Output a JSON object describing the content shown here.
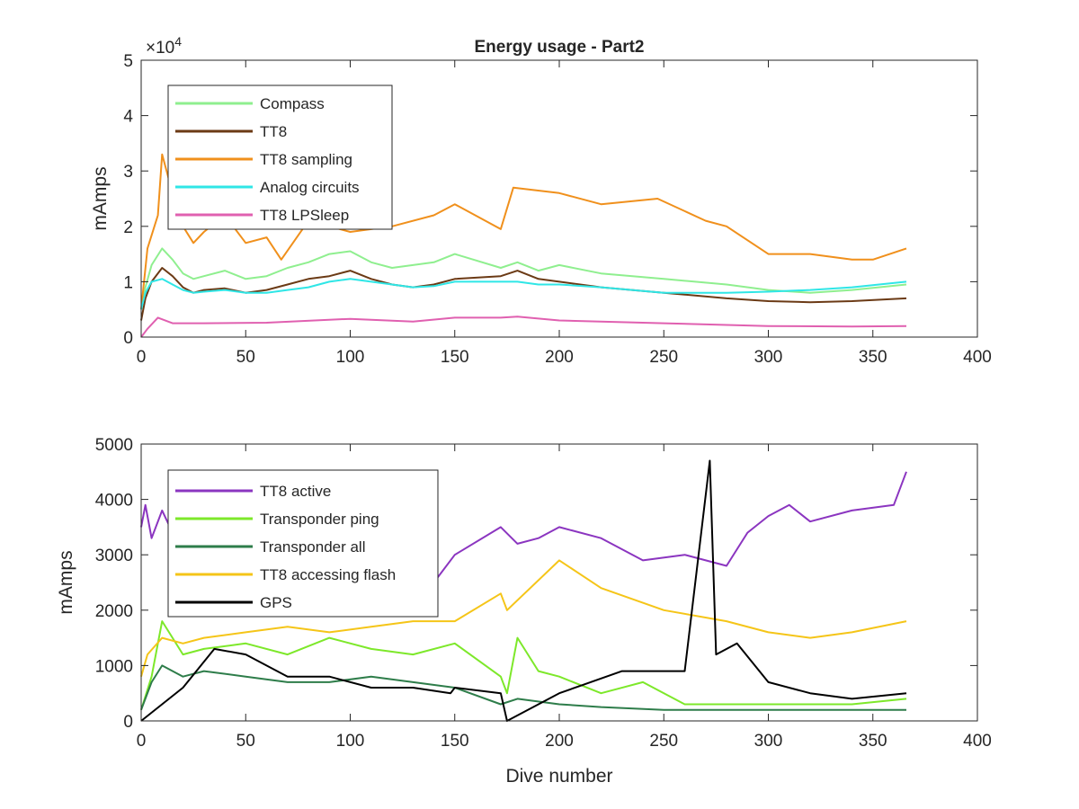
{
  "chart_data": [
    {
      "type": "line",
      "title": "Energy usage - Part2",
      "xlabel": "",
      "ylabel": "mAmps",
      "xlim": [
        0,
        400
      ],
      "ylim": [
        0,
        50000
      ],
      "exponent_label": "×10^4",
      "exponent_base": "×10",
      "exponent_power": "4",
      "xticks": [
        "0",
        "50",
        "100",
        "150",
        "200",
        "250",
        "300",
        "350",
        "400"
      ],
      "yticks": [
        "0",
        "1",
        "2",
        "3",
        "4",
        "5"
      ],
      "legend_position": "top-left",
      "grid": false,
      "series": [
        {
          "name": "Compass",
          "color": "#8fef8f",
          "x": [
            0,
            2,
            5,
            10,
            15,
            20,
            25,
            30,
            40,
            50,
            60,
            70,
            80,
            90,
            100,
            110,
            120,
            130,
            140,
            150,
            172,
            180,
            190,
            200,
            220,
            250,
            280,
            300,
            320,
            340,
            366
          ],
          "y": [
            5000,
            9000,
            13000,
            16000,
            14000,
            11500,
            10500,
            11000,
            12000,
            10500,
            11000,
            12500,
            13500,
            15000,
            15500,
            13500,
            12500,
            13000,
            13500,
            15000,
            12500,
            13500,
            12000,
            13000,
            11500,
            10500,
            9500,
            8500,
            8000,
            8500,
            9500
          ]
        },
        {
          "name": "TT8",
          "color": "#6b3a15",
          "x": [
            0,
            2,
            5,
            10,
            15,
            20,
            25,
            30,
            40,
            50,
            60,
            70,
            80,
            90,
            100,
            110,
            120,
            130,
            140,
            150,
            172,
            180,
            190,
            200,
            220,
            250,
            280,
            300,
            320,
            340,
            366
          ],
          "y": [
            3000,
            7000,
            10000,
            12500,
            11000,
            9000,
            8000,
            8500,
            8800,
            8000,
            8500,
            9500,
            10500,
            11000,
            12000,
            10500,
            9500,
            9000,
            9500,
            10500,
            11000,
            12000,
            10500,
            10000,
            9000,
            8000,
            7000,
            6500,
            6300,
            6500,
            7000
          ]
        },
        {
          "name": "TT8 sampling",
          "color": "#f0901c",
          "x": [
            0,
            3,
            8,
            10,
            15,
            20,
            25,
            30,
            40,
            50,
            60,
            67,
            80,
            100,
            120,
            140,
            150,
            172,
            178,
            200,
            220,
            247,
            270,
            280,
            300,
            320,
            340,
            350,
            366
          ],
          "y": [
            5000,
            16000,
            22000,
            33000,
            26000,
            20000,
            17000,
            19000,
            22000,
            17000,
            18000,
            14000,
            21000,
            19000,
            20000,
            22000,
            24000,
            19500,
            27000,
            26000,
            24000,
            25000,
            21000,
            20000,
            15000,
            15000,
            14000,
            14000,
            16000
          ]
        },
        {
          "name": "Analog circuits",
          "color": "#2fe6e6",
          "x": [
            0,
            2,
            5,
            10,
            15,
            20,
            25,
            30,
            40,
            50,
            60,
            70,
            80,
            90,
            100,
            110,
            120,
            130,
            140,
            150,
            172,
            180,
            190,
            200,
            220,
            250,
            280,
            300,
            320,
            340,
            366
          ],
          "y": [
            5000,
            8000,
            10000,
            10500,
            9500,
            8500,
            8000,
            8200,
            8500,
            8000,
            8000,
            8500,
            9000,
            10000,
            10500,
            10000,
            9500,
            9000,
            9200,
            10000,
            10000,
            10000,
            9500,
            9500,
            9000,
            8000,
            8000,
            8200,
            8500,
            9000,
            10000
          ]
        },
        {
          "name": "TT8 LPSleep",
          "color": "#e060b0",
          "x": [
            0,
            3,
            8,
            15,
            30,
            60,
            100,
            130,
            150,
            172,
            180,
            200,
            250,
            300,
            340,
            366
          ],
          "y": [
            0,
            1500,
            3500,
            2500,
            2500,
            2600,
            3300,
            2800,
            3500,
            3500,
            3700,
            3000,
            2500,
            2000,
            1900,
            2000
          ]
        }
      ]
    },
    {
      "type": "line",
      "title": "",
      "xlabel": "Dive number",
      "ylabel": "mAmps",
      "xlim": [
        0,
        400
      ],
      "ylim": [
        0,
        5000
      ],
      "xticks": [
        "0",
        "50",
        "100",
        "150",
        "200",
        "250",
        "300",
        "350",
        "400"
      ],
      "yticks": [
        "0",
        "1000",
        "2000",
        "3000",
        "4000",
        "5000"
      ],
      "legend_position": "top-left",
      "grid": false,
      "series": [
        {
          "name": "TT8 active",
          "color": "#8b35c0",
          "x": [
            0,
            2,
            5,
            10,
            15,
            20,
            30,
            50,
            80,
            100,
            120,
            140,
            150,
            172,
            180,
            190,
            200,
            220,
            240,
            260,
            280,
            290,
            300,
            310,
            320,
            340,
            360,
            366
          ],
          "y": [
            3500,
            3900,
            3300,
            3800,
            3400,
            3100,
            2800,
            2600,
            2400,
            2300,
            2200,
            2500,
            3000,
            3500,
            3200,
            3300,
            3500,
            3300,
            2900,
            3000,
            2800,
            3400,
            3700,
            3900,
            3600,
            3800,
            3900,
            4500
          ]
        },
        {
          "name": "Transponder ping",
          "color": "#7de82a",
          "x": [
            0,
            5,
            10,
            20,
            30,
            50,
            70,
            90,
            110,
            130,
            150,
            172,
            175,
            180,
            190,
            200,
            220,
            240,
            260,
            280,
            300,
            320,
            340,
            366
          ],
          "y": [
            200,
            800,
            1800,
            1200,
            1300,
            1400,
            1200,
            1500,
            1300,
            1200,
            1400,
            800,
            500,
            1500,
            900,
            800,
            500,
            700,
            300,
            300,
            300,
            300,
            300,
            400
          ]
        },
        {
          "name": "Transponder all",
          "color": "#2e7d4a",
          "x": [
            0,
            5,
            10,
            20,
            30,
            50,
            70,
            90,
            110,
            130,
            150,
            172,
            180,
            200,
            220,
            250,
            300,
            366
          ],
          "y": [
            200,
            700,
            1000,
            800,
            900,
            800,
            700,
            700,
            800,
            700,
            600,
            300,
            400,
            300,
            250,
            200,
            200,
            200
          ]
        },
        {
          "name": "TT8 accessing flash",
          "color": "#f5c518",
          "x": [
            0,
            3,
            10,
            20,
            30,
            50,
            70,
            90,
            110,
            130,
            150,
            172,
            175,
            200,
            220,
            250,
            280,
            300,
            320,
            340,
            366
          ],
          "y": [
            800,
            1200,
            1500,
            1400,
            1500,
            1600,
            1700,
            1600,
            1700,
            1800,
            1800,
            2300,
            2000,
            2900,
            2400,
            2000,
            1800,
            1600,
            1500,
            1600,
            1800
          ]
        },
        {
          "name": "GPS",
          "color": "#000000",
          "x": [
            0,
            20,
            35,
            50,
            70,
            90,
            110,
            130,
            148,
            150,
            172,
            175,
            200,
            230,
            260,
            272,
            275,
            285,
            300,
            320,
            340,
            366
          ],
          "y": [
            0,
            600,
            1300,
            1200,
            800,
            800,
            600,
            600,
            500,
            600,
            500,
            0,
            500,
            900,
            900,
            4700,
            1200,
            1400,
            700,
            500,
            400,
            500
          ]
        }
      ]
    }
  ]
}
